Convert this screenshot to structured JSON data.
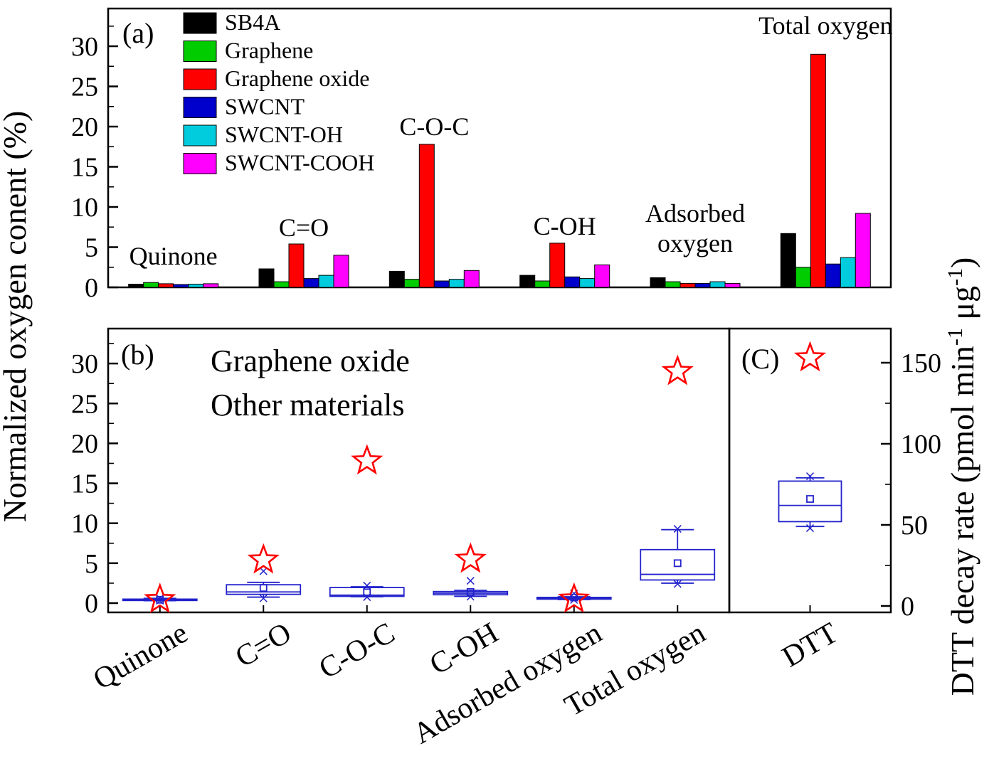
{
  "figure": {
    "left_axis_label": "Normalized oxygen conent (%)",
    "right_axis_label": "DTT decay rate (pmol min-1 μg-1)",
    "right_axis_label_parts": [
      {
        "t": "DTT decay rate (pmol min"
      },
      {
        "t": "-1",
        "sup": true
      },
      {
        "t": " μg"
      },
      {
        "t": "-1",
        "sup": true
      },
      {
        "t": ")"
      }
    ]
  },
  "chart_data": [
    {
      "panel": "a",
      "type": "bar",
      "panel_label": "(a)",
      "ylabel": "Normalized oxygen content (%)",
      "ylim": [
        0,
        34.5
      ],
      "yticks": [
        0,
        5,
        10,
        15,
        20,
        25,
        30
      ],
      "categories": [
        "Quinone",
        "C=O",
        "C-O-C",
        "C-OH",
        "Adsorbed oxygen",
        "Total oxygen"
      ],
      "annotations": [
        "Quinone",
        "C=O",
        "C-O-C",
        "C-OH",
        "Adsorbed\noxygen",
        "Total oxygen"
      ],
      "series": [
        {
          "name": "SB4A",
          "color": "#000000",
          "values": [
            0.4,
            2.3,
            2.0,
            1.5,
            1.2,
            6.7
          ]
        },
        {
          "name": "Graphene",
          "color": "#00CC00",
          "values": [
            0.6,
            0.7,
            1.0,
            0.8,
            0.7,
            2.5
          ]
        },
        {
          "name": "Graphene oxide",
          "color": "#FF0000",
          "values": [
            0.45,
            5.4,
            17.8,
            5.5,
            0.5,
            29.0
          ]
        },
        {
          "name": "SWCNT",
          "color": "#0000CC",
          "values": [
            0.35,
            1.1,
            0.8,
            1.3,
            0.5,
            2.9
          ]
        },
        {
          "name": "SWCNT-OH",
          "color": "#00CCDD",
          "values": [
            0.4,
            1.5,
            1.0,
            1.1,
            0.7,
            3.7
          ]
        },
        {
          "name": "SWCNT-COOH",
          "color": "#FF00FF",
          "values": [
            0.45,
            4.0,
            2.1,
            2.8,
            0.5,
            9.2
          ]
        }
      ]
    },
    {
      "panel": "b",
      "type": "box",
      "panel_label": "(b)",
      "ylim": [
        0,
        34.4
      ],
      "yticks": [
        0,
        5,
        10,
        15,
        20,
        25,
        30
      ],
      "box_color": "#2222CC",
      "legend": [
        {
          "label": "Graphene oxide",
          "color": "#FF0000"
        },
        {
          "label": "Other materials",
          "color": "#0000FF"
        }
      ],
      "categories": [
        "Quinone",
        "C=O",
        "C-O-C",
        "C-OH",
        "Adsorbed oxygen",
        "Total oxygen"
      ],
      "boxes": [
        {
          "min": 0.3,
          "low": 0.3,
          "q1": 0.33,
          "median": 0.4,
          "q3": 0.5,
          "high": 0.6,
          "max": 0.6,
          "mean": 0.42
        },
        {
          "min": 0.6,
          "low": 0.75,
          "q1": 1.1,
          "median": 1.4,
          "q3": 2.3,
          "high": 2.6,
          "max": 4.0,
          "mean": 1.9
        },
        {
          "min": 0.75,
          "low": 0.8,
          "q1": 0.85,
          "median": 1.0,
          "q3": 1.95,
          "high": 2.05,
          "max": 2.2,
          "mean": 1.35
        },
        {
          "min": 0.8,
          "low": 0.85,
          "q1": 1.05,
          "median": 1.25,
          "q3": 1.45,
          "high": 1.6,
          "max": 2.8,
          "mean": 1.4
        },
        {
          "min": 0.4,
          "low": 0.45,
          "q1": 0.5,
          "median": 0.6,
          "q3": 0.72,
          "high": 0.8,
          "max": 1.2,
          "mean": 0.7
        },
        {
          "min": 2.4,
          "low": 2.5,
          "q1": 2.9,
          "median": 3.6,
          "q3": 6.7,
          "high": 9.2,
          "max": 9.3,
          "mean": 5.0
        }
      ],
      "star_series": {
        "name": "Graphene oxide",
        "color": "#FF0000",
        "values": [
          0.45,
          5.4,
          17.8,
          5.5,
          0.5,
          29.0
        ]
      }
    },
    {
      "panel": "c",
      "type": "box",
      "panel_label": "(C)",
      "ylabel": "DTT decay rate (pmol min-1 μg-1)",
      "ylim": [
        0,
        172
      ],
      "yticks": [
        0,
        50,
        100,
        150
      ],
      "box_color": "#2222CC",
      "categories": [
        "DTT"
      ],
      "boxes": [
        {
          "min": 48,
          "low": 49,
          "q1": 52,
          "median": 62,
          "q3": 77,
          "high": 79,
          "max": 80,
          "mean": 66
        }
      ],
      "star_series": {
        "name": "Graphene oxide",
        "color": "#FF0000",
        "values": [
          153
        ]
      }
    }
  ]
}
